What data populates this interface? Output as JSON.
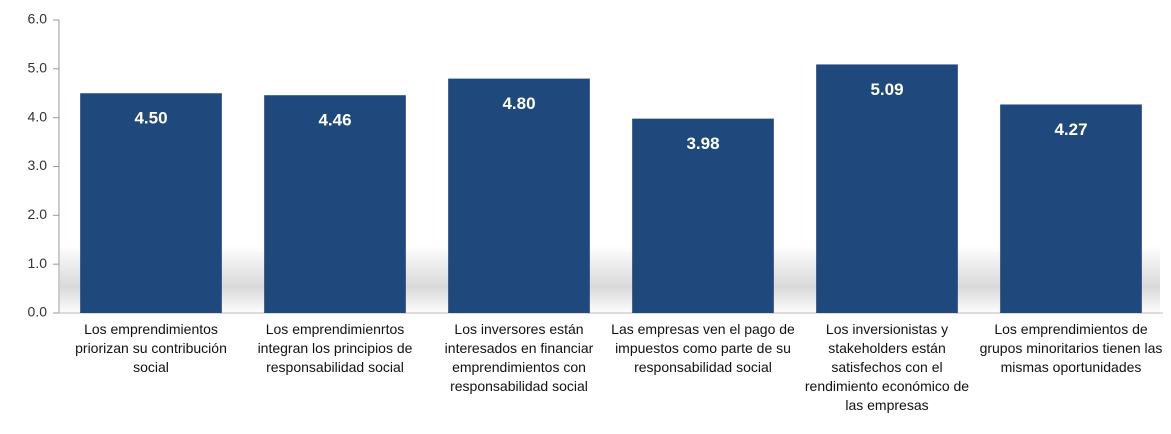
{
  "chart_data": {
    "type": "bar",
    "categories": [
      "Los emprendimientos priorizan su contribución social",
      "Los emprendimienrtos integran los principios de responsabilidad social",
      "Los inversores están interesados en financiar emprendimientos con responsabilidad social",
      "Las empresas ven el pago de impuestos como parte de su responsabilidad social",
      "Los inversionistas y stakeholders están satisfechos con el rendimiento económico de las empresas",
      "Los emprendimientos de grupos minoritarios tienen las mismas oportunidades"
    ],
    "values": [
      4.5,
      4.46,
      4.8,
      3.98,
      5.09,
      4.27
    ],
    "value_labels": [
      "4.50",
      "4.46",
      "4.80",
      "3.98",
      "5.09",
      "4.27"
    ],
    "color": "#1f497d",
    "ylim": [
      0,
      6
    ],
    "yticks": [
      {
        "value": 0,
        "label": "0.0"
      },
      {
        "value": 1,
        "label": "1.0"
      },
      {
        "value": 2,
        "label": "2.0"
      },
      {
        "value": 3,
        "label": "3.0"
      },
      {
        "value": 4,
        "label": "4.0"
      },
      {
        "value": 5,
        "label": "5.0"
      },
      {
        "value": 6,
        "label": "6.0"
      }
    ],
    "grid": false
  }
}
